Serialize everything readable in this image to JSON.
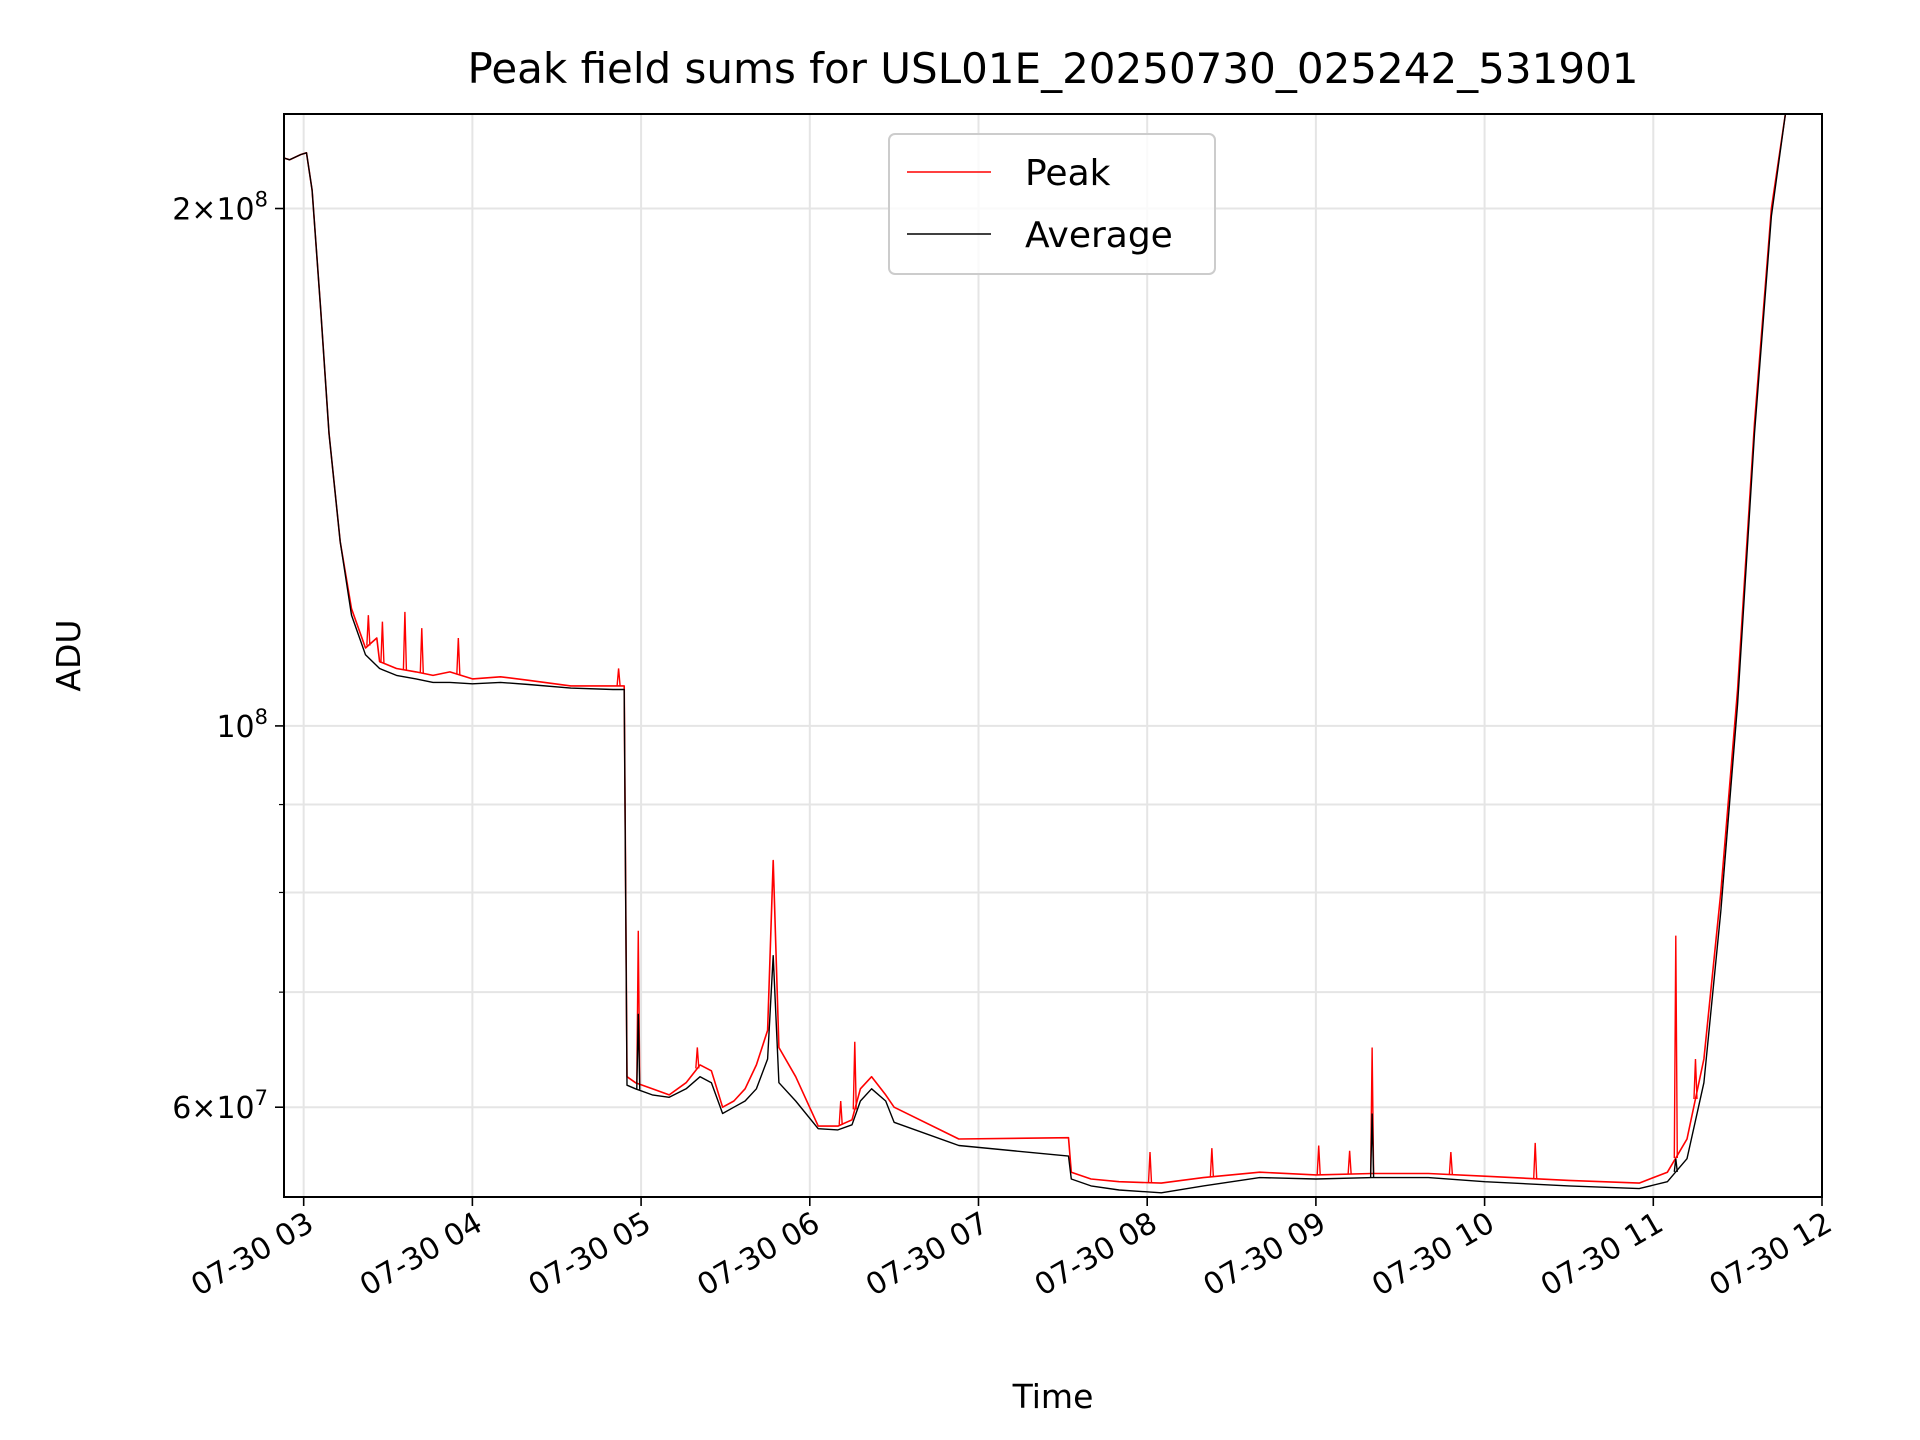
{
  "chart_data": {
    "type": "line",
    "title": "Peak field sums for USL01E_20250730_025242_531901",
    "xlabel": "Time",
    "ylabel": "ADU",
    "yscale": "log",
    "ylim": [
      53200000,
      227000000
    ],
    "xlim": [
      "2025-07-30 02:53",
      "2025-07-30 12:00"
    ],
    "grid": true,
    "legend_position": "top-center",
    "x_tick_labels": [
      "07-30 03",
      "07-30 04",
      "07-30 05",
      "07-30 06",
      "07-30 07",
      "07-30 08",
      "07-30 09",
      "07-30 10",
      "07-30 11",
      "07-30 12"
    ],
    "y_tick_labels": [
      {
        "value": 200000000,
        "mantissa": "2",
        "times": "×10",
        "exp": "8"
      },
      {
        "value": 100000000,
        "mantissa": "",
        "times": "10",
        "exp": "8"
      },
      {
        "value": 60000000,
        "mantissa": "6",
        "times": "×10",
        "exp": "7"
      }
    ],
    "y_minor_ticks": [
      70000000,
      80000000,
      90000000
    ],
    "series": [
      {
        "name": "Peak",
        "color": "#ff0000",
        "points": [
          [
            "2025-07-30 02:53",
            214000000
          ],
          [
            "2025-07-30 02:55",
            213500000
          ],
          [
            "2025-07-30 02:59",
            215000000
          ],
          [
            "2025-07-30 03:01",
            215500000
          ],
          [
            "2025-07-30 03:03",
            205000000
          ],
          [
            "2025-07-30 03:06",
            175000000
          ],
          [
            "2025-07-30 03:09",
            148000000
          ],
          [
            "2025-07-30 03:13",
            128000000
          ],
          [
            "2025-07-30 03:17",
            117000000
          ],
          [
            "2025-07-30 03:22",
            111000000
          ],
          [
            "2025-07-30 03:26",
            112500000
          ],
          [
            "2025-07-30 03:27",
            109000000
          ],
          [
            "2025-07-30 03:33",
            108000000
          ],
          [
            "2025-07-30 03:40",
            107500000
          ],
          [
            "2025-07-30 03:46",
            107000000
          ],
          [
            "2025-07-30 03:52",
            107500000
          ],
          [
            "2025-07-30 04:00",
            106500000
          ],
          [
            "2025-07-30 04:10",
            106800000
          ],
          [
            "2025-07-30 04:20",
            106300000
          ],
          [
            "2025-07-30 04:35",
            105500000
          ],
          [
            "2025-07-30 04:50",
            105500000
          ],
          [
            "2025-07-30 04:54",
            105500000
          ],
          [
            "2025-07-30 04:55",
            62500000
          ],
          [
            "2025-07-30 04:58",
            62000000
          ],
          [
            "2025-07-30 05:04",
            61500000
          ],
          [
            "2025-07-30 05:10",
            61000000
          ],
          [
            "2025-07-30 05:16",
            62000000
          ],
          [
            "2025-07-30 05:21",
            63500000
          ],
          [
            "2025-07-30 05:25",
            63000000
          ],
          [
            "2025-07-30 05:29",
            60000000
          ],
          [
            "2025-07-30 05:33",
            60500000
          ],
          [
            "2025-07-30 05:37",
            61500000
          ],
          [
            "2025-07-30 05:41",
            63500000
          ],
          [
            "2025-07-30 05:45",
            66500000
          ],
          [
            "2025-07-30 05:47",
            83500000
          ],
          [
            "2025-07-30 05:49",
            65000000
          ],
          [
            "2025-07-30 05:55",
            62500000
          ],
          [
            "2025-07-30 06:03",
            58500000
          ],
          [
            "2025-07-30 06:10",
            58500000
          ],
          [
            "2025-07-30 06:15",
            59000000
          ],
          [
            "2025-07-30 06:18",
            61500000
          ],
          [
            "2025-07-30 06:22",
            62500000
          ],
          [
            "2025-07-30 06:27",
            61000000
          ],
          [
            "2025-07-30 06:30",
            60000000
          ],
          [
            "2025-07-30 06:53",
            57500000
          ],
          [
            "2025-07-30 07:32",
            57600000
          ],
          [
            "2025-07-30 07:33",
            55000000
          ],
          [
            "2025-07-30 07:40",
            54500000
          ],
          [
            "2025-07-30 07:50",
            54300000
          ],
          [
            "2025-07-30 08:05",
            54200000
          ],
          [
            "2025-07-30 08:20",
            54600000
          ],
          [
            "2025-07-30 08:40",
            55000000
          ],
          [
            "2025-07-30 09:00",
            54800000
          ],
          [
            "2025-07-30 09:20",
            54900000
          ],
          [
            "2025-07-30 09:40",
            54900000
          ],
          [
            "2025-07-30 10:00",
            54700000
          ],
          [
            "2025-07-30 10:30",
            54400000
          ],
          [
            "2025-07-30 10:55",
            54200000
          ],
          [
            "2025-07-30 11:05",
            55000000
          ],
          [
            "2025-07-30 11:12",
            57500000
          ],
          [
            "2025-07-30 11:18",
            64000000
          ],
          [
            "2025-07-30 11:24",
            80000000
          ],
          [
            "2025-07-30 11:30",
            105000000
          ],
          [
            "2025-07-30 11:36",
            150000000
          ],
          [
            "2025-07-30 11:42",
            200000000
          ],
          [
            "2025-07-30 11:47",
            227000000
          ]
        ],
        "spikes": [
          [
            "2025-07-30 03:23",
            116000000
          ],
          [
            "2025-07-30 03:28",
            115000000
          ],
          [
            "2025-07-30 03:36",
            116500000
          ],
          [
            "2025-07-30 03:42",
            114000000
          ],
          [
            "2025-07-30 03:55",
            112500000
          ],
          [
            "2025-07-30 04:52",
            108000000
          ],
          [
            "2025-07-30 04:59",
            76000000
          ],
          [
            "2025-07-30 05:20",
            65000000
          ],
          [
            "2025-07-30 06:11",
            60500000
          ],
          [
            "2025-07-30 06:16",
            65500000
          ],
          [
            "2025-07-30 08:01",
            56500000
          ],
          [
            "2025-07-30 08:23",
            56800000
          ],
          [
            "2025-07-30 09:01",
            57000000
          ],
          [
            "2025-07-30 09:12",
            56600000
          ],
          [
            "2025-07-30 09:20",
            65000000
          ],
          [
            "2025-07-30 09:48",
            56500000
          ],
          [
            "2025-07-30 10:18",
            57200000
          ],
          [
            "2025-07-30 11:08",
            75500000
          ],
          [
            "2025-07-30 11:15",
            64000000
          ]
        ]
      },
      {
        "name": "Average",
        "color": "#000000",
        "points": [
          [
            "2025-07-30 02:53",
            214000000
          ],
          [
            "2025-07-30 02:55",
            213500000
          ],
          [
            "2025-07-30 02:59",
            215000000
          ],
          [
            "2025-07-30 03:01",
            215500000
          ],
          [
            "2025-07-30 03:03",
            205000000
          ],
          [
            "2025-07-30 03:06",
            175000000
          ],
          [
            "2025-07-30 03:09",
            148000000
          ],
          [
            "2025-07-30 03:13",
            128000000
          ],
          [
            "2025-07-30 03:17",
            116000000
          ],
          [
            "2025-07-30 03:22",
            110000000
          ],
          [
            "2025-07-30 03:27",
            108000000
          ],
          [
            "2025-07-30 03:33",
            107000000
          ],
          [
            "2025-07-30 03:40",
            106500000
          ],
          [
            "2025-07-30 03:46",
            106000000
          ],
          [
            "2025-07-30 03:52",
            106000000
          ],
          [
            "2025-07-30 04:00",
            105800000
          ],
          [
            "2025-07-30 04:10",
            106000000
          ],
          [
            "2025-07-30 04:20",
            105700000
          ],
          [
            "2025-07-30 04:35",
            105200000
          ],
          [
            "2025-07-30 04:50",
            105000000
          ],
          [
            "2025-07-30 04:54",
            105000000
          ],
          [
            "2025-07-30 04:55",
            61800000
          ],
          [
            "2025-07-30 04:58",
            61500000
          ],
          [
            "2025-07-30 05:04",
            61000000
          ],
          [
            "2025-07-30 05:10",
            60800000
          ],
          [
            "2025-07-30 05:16",
            61500000
          ],
          [
            "2025-07-30 05:21",
            62500000
          ],
          [
            "2025-07-30 05:25",
            62000000
          ],
          [
            "2025-07-30 05:29",
            59500000
          ],
          [
            "2025-07-30 05:33",
            60000000
          ],
          [
            "2025-07-30 05:37",
            60500000
          ],
          [
            "2025-07-30 05:41",
            61500000
          ],
          [
            "2025-07-30 05:45",
            64000000
          ],
          [
            "2025-07-30 05:47",
            73500000
          ],
          [
            "2025-07-30 05:49",
            62000000
          ],
          [
            "2025-07-30 05:55",
            60500000
          ],
          [
            "2025-07-30 06:03",
            58300000
          ],
          [
            "2025-07-30 06:10",
            58200000
          ],
          [
            "2025-07-30 06:15",
            58600000
          ],
          [
            "2025-07-30 06:18",
            60500000
          ],
          [
            "2025-07-30 06:22",
            61500000
          ],
          [
            "2025-07-30 06:27",
            60500000
          ],
          [
            "2025-07-30 06:30",
            58800000
          ],
          [
            "2025-07-30 06:53",
            57000000
          ],
          [
            "2025-07-30 07:32",
            56200000
          ],
          [
            "2025-07-30 07:33",
            54500000
          ],
          [
            "2025-07-30 07:40",
            54000000
          ],
          [
            "2025-07-30 07:50",
            53700000
          ],
          [
            "2025-07-30 08:05",
            53500000
          ],
          [
            "2025-07-30 08:20",
            54000000
          ],
          [
            "2025-07-30 08:40",
            54600000
          ],
          [
            "2025-07-30 09:00",
            54500000
          ],
          [
            "2025-07-30 09:20",
            54600000
          ],
          [
            "2025-07-30 09:40",
            54600000
          ],
          [
            "2025-07-30 10:00",
            54300000
          ],
          [
            "2025-07-30 10:30",
            54000000
          ],
          [
            "2025-07-30 10:55",
            53800000
          ],
          [
            "2025-07-30 11:05",
            54300000
          ],
          [
            "2025-07-30 11:12",
            56000000
          ],
          [
            "2025-07-30 11:18",
            62000000
          ],
          [
            "2025-07-30 11:24",
            78000000
          ],
          [
            "2025-07-30 11:30",
            103000000
          ],
          [
            "2025-07-30 11:36",
            148000000
          ],
          [
            "2025-07-30 11:42",
            198000000
          ],
          [
            "2025-07-30 11:47",
            227000000
          ]
        ],
        "spikes": [
          [
            "2025-07-30 04:59",
            68000000
          ],
          [
            "2025-07-30 09:20",
            59500000
          ],
          [
            "2025-07-30 11:08",
            56000000
          ]
        ]
      }
    ]
  }
}
